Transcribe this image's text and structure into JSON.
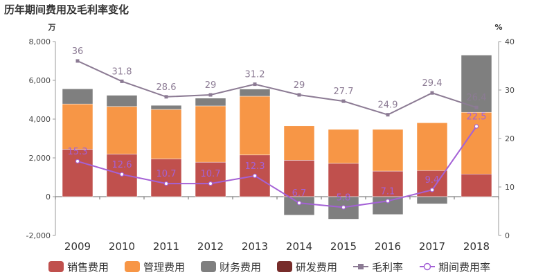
{
  "chart_data": {
    "type": "bar",
    "title": "历年期间费用及毛利率变化",
    "left_unit": "万",
    "right_unit": "%",
    "categories": [
      "2009",
      "2010",
      "2011",
      "2012",
      "2013",
      "2014",
      "2015",
      "2016",
      "2017",
      "2018"
    ],
    "left_axis": {
      "min": -2000,
      "max": 8000,
      "ticks": [
        "-2,000",
        "0",
        "2,000",
        "4,000",
        "6,000",
        "8,000"
      ]
    },
    "right_axis": {
      "min": 0,
      "max": 40,
      "ticks": [
        "0",
        "10",
        "20",
        "30",
        "40"
      ]
    },
    "stacked_series": [
      {
        "name": "销售费用",
        "color": "#c0504d",
        "values": [
          2450,
          2200,
          1950,
          1780,
          2150,
          1880,
          1720,
          1320,
          1350,
          1170
        ]
      },
      {
        "name": "管理费用",
        "color": "#f79646",
        "values": [
          2330,
          2450,
          2550,
          2900,
          3030,
          1770,
          1750,
          2150,
          2460,
          3180
        ]
      },
      {
        "name": "财务费用",
        "color": "#7f7f7f",
        "values": [
          780,
          580,
          210,
          400,
          370,
          -950,
          -1160,
          -920,
          -370,
          2950
        ]
      },
      {
        "name": "研发费用",
        "color": "#772c2a",
        "values": [
          0,
          0,
          0,
          0,
          0,
          0,
          0,
          0,
          0,
          0
        ]
      }
    ],
    "line_series": [
      {
        "name": "毛利率",
        "color": "#8c7b94",
        "marker": "square",
        "values": [
          36,
          31.8,
          28.6,
          29,
          31.2,
          29,
          27.7,
          24.9,
          29.4,
          26.4
        ]
      },
      {
        "name": "期间费用率",
        "color": "#a461d6",
        "marker": "circle",
        "values": [
          15.3,
          12.6,
          10.7,
          10.7,
          12.3,
          6.7,
          5.8,
          7.1,
          9.4,
          22.5
        ]
      }
    ],
    "legend_position": "bottom"
  }
}
